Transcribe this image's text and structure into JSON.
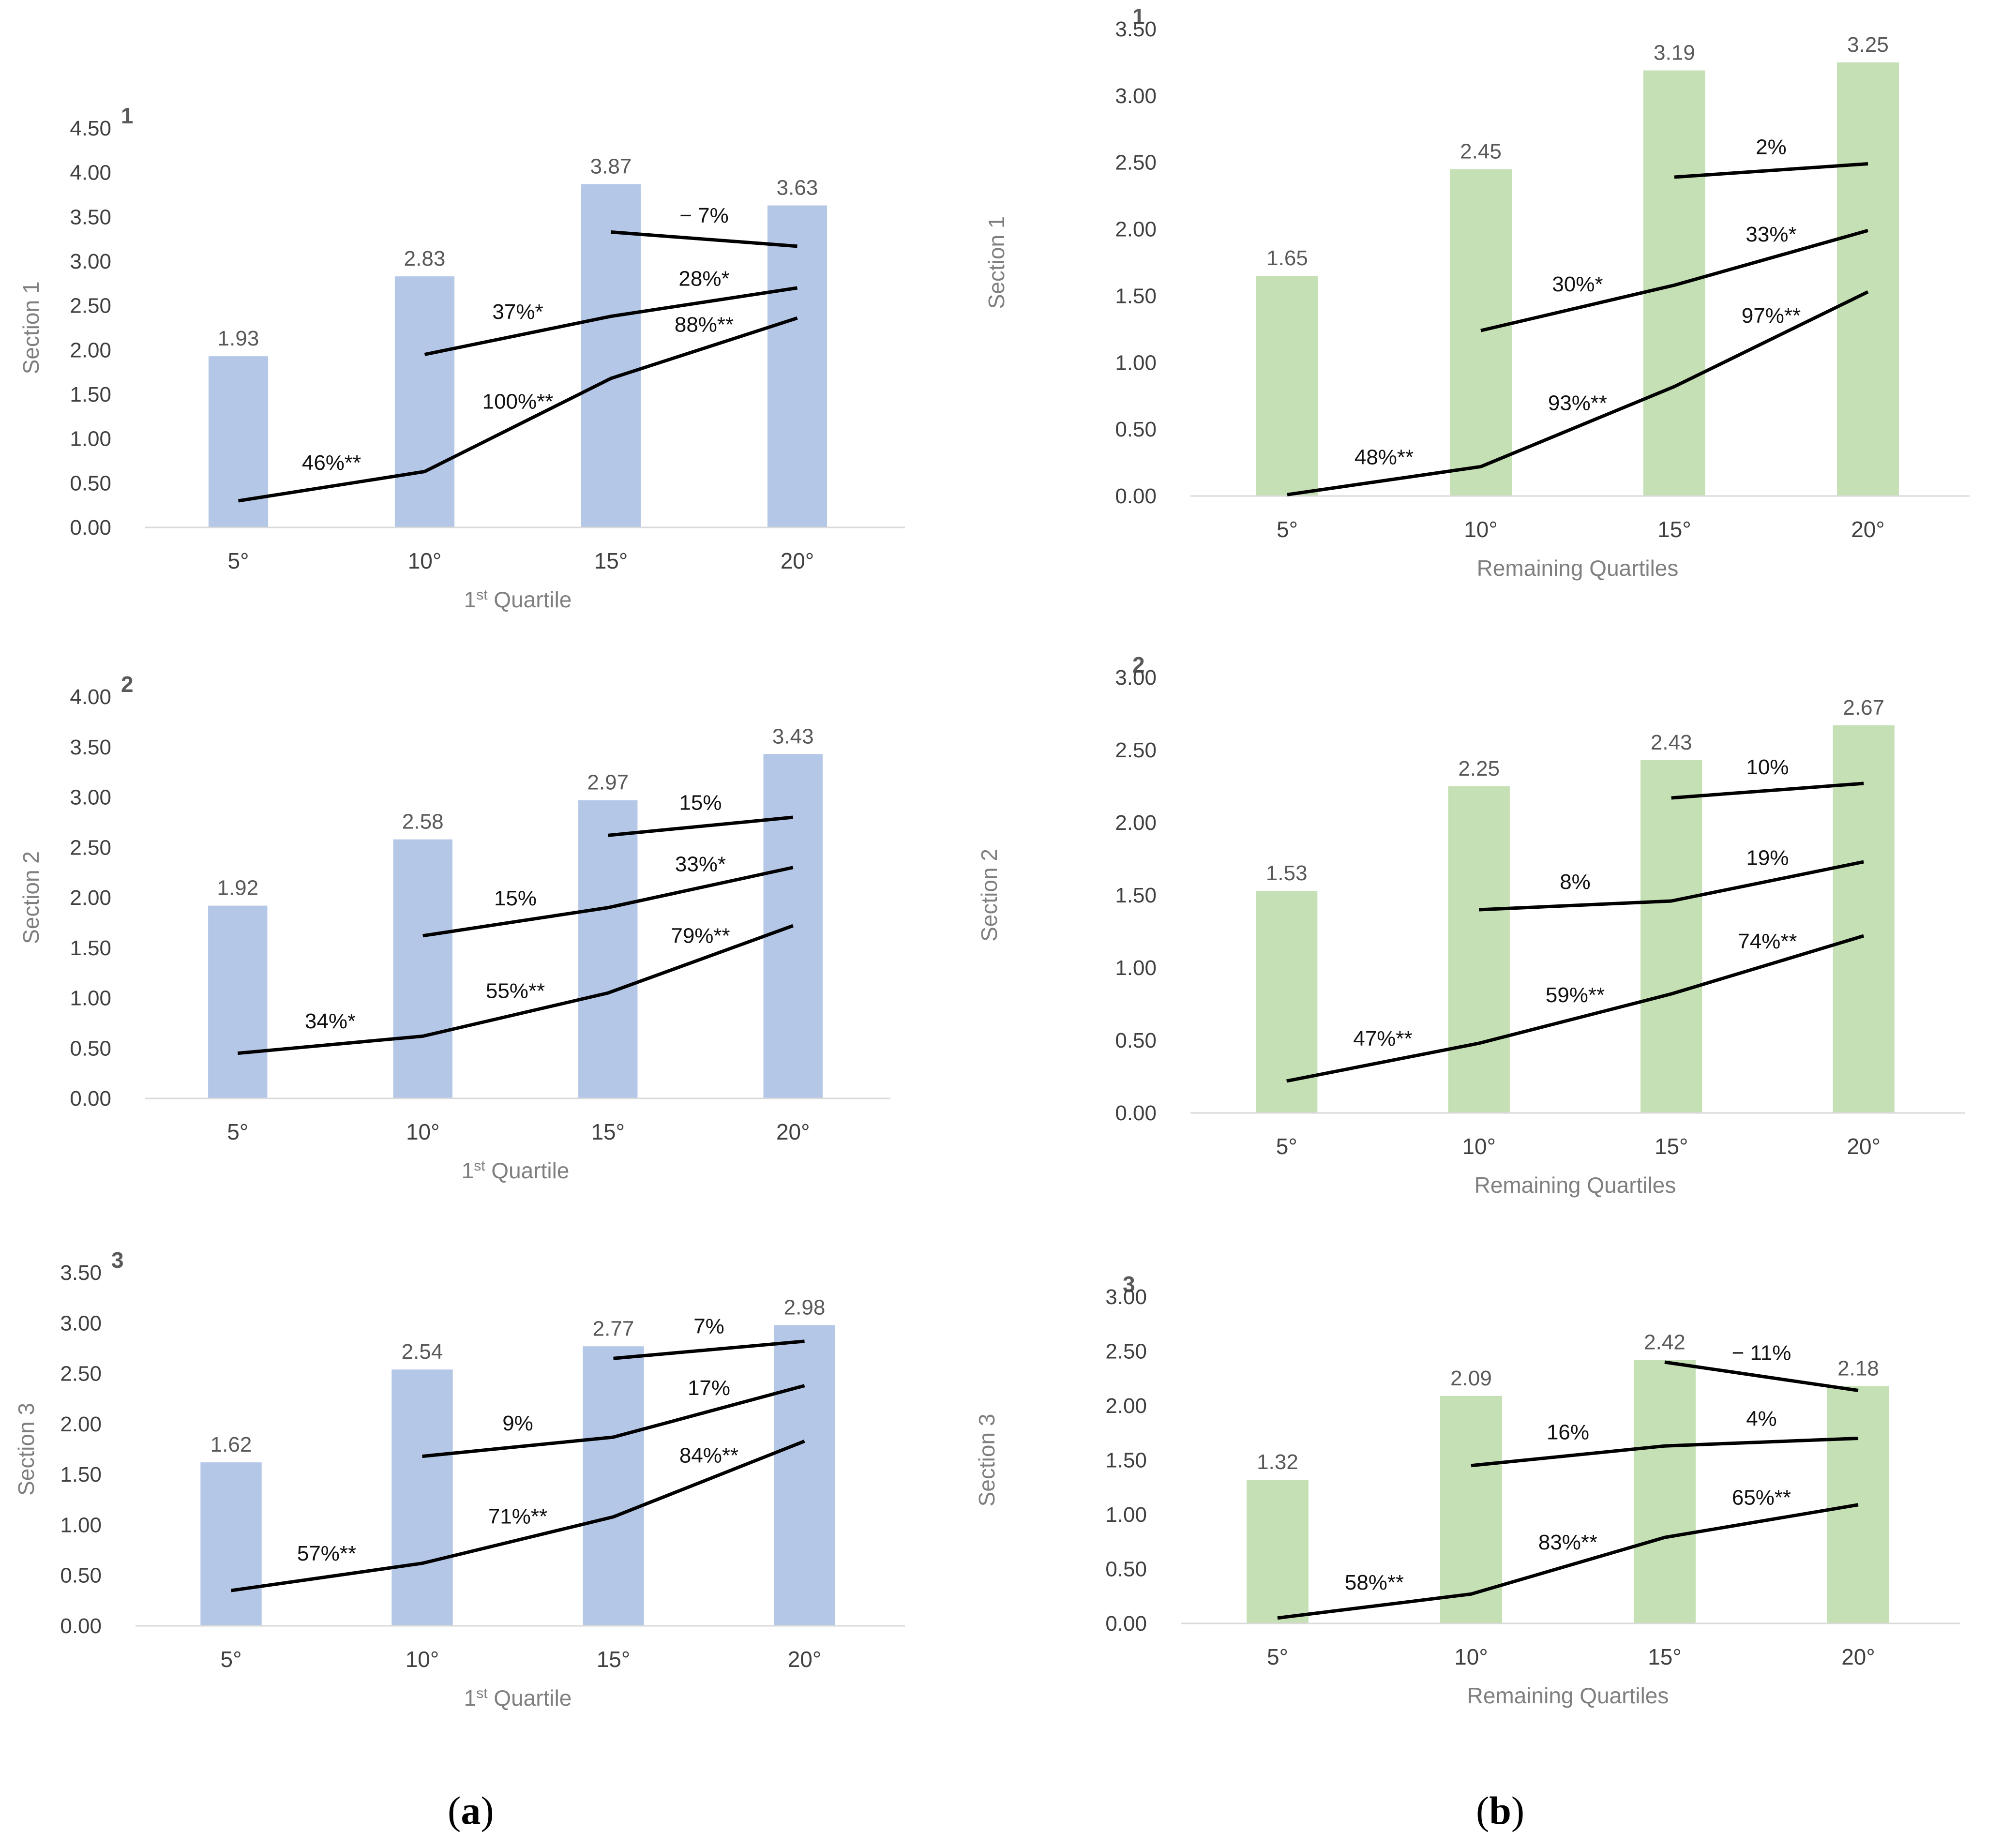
{
  "captions": {
    "a": "a",
    "b": "b"
  },
  "colors": {
    "left_bars": "#b4c7e7",
    "right_bars": "#c5e0b4",
    "lines": "#000000"
  },
  "chart_data": [
    {
      "id": "a1",
      "type": "bar",
      "panel": "1",
      "ylabel": "Section 1",
      "xlabel": "1st Quartile",
      "xlabel_main": "1",
      "xlabel_sup": "st",
      "xlabel_rest": " Quartile",
      "categories": [
        "5°",
        "10°",
        "15°",
        "20°"
      ],
      "values": [
        1.93,
        2.83,
        3.87,
        3.63
      ],
      "ylim": [
        0,
        4.5
      ],
      "yticks": [
        "0.00",
        "0.50",
        "1.00",
        "1.50",
        "2.00",
        "2.50",
        "3.00",
        "3.50",
        "4.00",
        "4.50"
      ],
      "ytick_values": [
        0,
        0.5,
        1,
        1.5,
        2,
        2.5,
        3,
        3.5,
        4,
        4.5
      ],
      "bar_color": "#b4c7e7",
      "lines": [
        {
          "points": [
            [
              0,
              0.3
            ],
            [
              1,
              0.63
            ],
            [
              2,
              1.68
            ],
            [
              3,
              2.36
            ]
          ],
          "labels": [
            "46%**",
            "100%**",
            "88%**"
          ]
        },
        {
          "points": [
            [
              1,
              1.95
            ],
            [
              2,
              2.38
            ],
            [
              3,
              2.7
            ]
          ],
          "labels": [
            "37%*",
            "28%*"
          ]
        },
        {
          "points": [
            [
              2,
              3.33
            ],
            [
              3,
              3.17
            ]
          ],
          "labels": [
            "− 7%"
          ]
        }
      ]
    },
    {
      "id": "a2",
      "type": "bar",
      "panel": "2",
      "ylabel": "Section 2",
      "xlabel": "1st Quartile",
      "xlabel_main": "1",
      "xlabel_sup": "st",
      "xlabel_rest": " Quartile",
      "categories": [
        "5°",
        "10°",
        "15°",
        "20°"
      ],
      "values": [
        1.92,
        2.58,
        2.97,
        3.43
      ],
      "ylim": [
        0,
        4.0
      ],
      "yticks": [
        "0.00",
        "0.50",
        "1.00",
        "1.50",
        "2.00",
        "2.50",
        "3.00",
        "3.50",
        "4.00"
      ],
      "ytick_values": [
        0,
        0.5,
        1,
        1.5,
        2,
        2.5,
        3,
        3.5,
        4
      ],
      "bar_color": "#b4c7e7",
      "lines": [
        {
          "points": [
            [
              0,
              0.45
            ],
            [
              1,
              0.62
            ],
            [
              2,
              1.05
            ],
            [
              3,
              1.72
            ]
          ],
          "labels": [
            "34%*",
            "55%**",
            "79%**"
          ]
        },
        {
          "points": [
            [
              1,
              1.62
            ],
            [
              2,
              1.9
            ],
            [
              3,
              2.3
            ]
          ],
          "labels": [
            "15%",
            "33%*"
          ]
        },
        {
          "points": [
            [
              2,
              2.62
            ],
            [
              3,
              2.8
            ]
          ],
          "labels": [
            "15%"
          ]
        }
      ]
    },
    {
      "id": "a3",
      "type": "bar",
      "panel": "3",
      "ylabel": "Section 3",
      "xlabel": "1st Quartile",
      "xlabel_main": "1",
      "xlabel_sup": "st",
      "xlabel_rest": " Quartile",
      "categories": [
        "5°",
        "10°",
        "15°",
        "20°"
      ],
      "values": [
        1.62,
        2.54,
        2.77,
        2.98
      ],
      "ylim": [
        0,
        3.5
      ],
      "yticks": [
        "0.00",
        "0.50",
        "1.00",
        "1.50",
        "2.00",
        "2.50",
        "3.00",
        "3.50"
      ],
      "ytick_values": [
        0,
        0.5,
        1,
        1.5,
        2,
        2.5,
        3,
        3.5
      ],
      "bar_color": "#b4c7e7",
      "lines": [
        {
          "points": [
            [
              0,
              0.35
            ],
            [
              1,
              0.62
            ],
            [
              2,
              1.08
            ],
            [
              3,
              1.83
            ]
          ],
          "labels": [
            "57%**",
            "71%**",
            "84%**"
          ]
        },
        {
          "points": [
            [
              1,
              1.68
            ],
            [
              2,
              1.87
            ],
            [
              3,
              2.38
            ]
          ],
          "labels": [
            "9%",
            "17%"
          ]
        },
        {
          "points": [
            [
              2,
              2.65
            ],
            [
              3,
              2.82
            ]
          ],
          "labels": [
            "7%"
          ]
        }
      ]
    },
    {
      "id": "b1",
      "type": "bar",
      "panel": "1",
      "ylabel": "Section 1",
      "xlabel": "Remaining Quartiles",
      "categories": [
        "5°",
        "10°",
        "15°",
        "20°"
      ],
      "values": [
        1.65,
        2.45,
        3.19,
        3.25
      ],
      "ylim": [
        0,
        3.5
      ],
      "yticks": [
        "0.00",
        "0.50",
        "1.00",
        "1.50",
        "2.00",
        "2.50",
        "3.00",
        "3.50"
      ],
      "ytick_values": [
        0,
        0.5,
        1,
        1.5,
        2,
        2.5,
        3,
        3.5
      ],
      "bar_color": "#c5e0b4",
      "lines": [
        {
          "points": [
            [
              0,
              0.01
            ],
            [
              1,
              0.22
            ],
            [
              2,
              0.82
            ],
            [
              3,
              1.53
            ]
          ],
          "labels": [
            "48%**",
            "93%**",
            "97%**"
          ]
        },
        {
          "points": [
            [
              1,
              1.24
            ],
            [
              2,
              1.58
            ],
            [
              3,
              1.99
            ]
          ],
          "labels": [
            "30%*",
            "33%*"
          ]
        },
        {
          "points": [
            [
              2,
              2.39
            ],
            [
              3,
              2.49
            ]
          ],
          "labels": [
            "2%"
          ]
        }
      ]
    },
    {
      "id": "b2",
      "type": "bar",
      "panel": "2",
      "ylabel": "Section 2",
      "xlabel": "Remaining Quartiles",
      "categories": [
        "5°",
        "10°",
        "15°",
        "20°"
      ],
      "values": [
        1.53,
        2.25,
        2.43,
        2.67
      ],
      "ylim": [
        0,
        3.0
      ],
      "yticks": [
        "0.00",
        "0.50",
        "1.00",
        "1.50",
        "2.00",
        "2.50",
        "3.00"
      ],
      "ytick_values": [
        0,
        0.5,
        1,
        1.5,
        2,
        2.5,
        3
      ],
      "bar_color": "#c5e0b4",
      "lines": [
        {
          "points": [
            [
              0,
              0.22
            ],
            [
              1,
              0.48
            ],
            [
              2,
              0.82
            ],
            [
              3,
              1.22
            ]
          ],
          "labels": [
            "47%**",
            "59%**",
            "74%**"
          ]
        },
        {
          "points": [
            [
              1,
              1.4
            ],
            [
              2,
              1.46
            ],
            [
              3,
              1.73
            ]
          ],
          "labels": [
            "8%",
            "19%"
          ]
        },
        {
          "points": [
            [
              2,
              2.17
            ],
            [
              3,
              2.27
            ]
          ],
          "labels": [
            "10%"
          ]
        }
      ]
    },
    {
      "id": "b3",
      "type": "bar",
      "panel": "3",
      "ylabel": "Section 3",
      "xlabel": "Remaining Quartiles",
      "categories": [
        "5°",
        "10°",
        "15°",
        "20°"
      ],
      "values": [
        1.32,
        2.09,
        2.42,
        2.18
      ],
      "ylim": [
        0,
        3.0
      ],
      "yticks": [
        "0.00",
        "0.50",
        "1.00",
        "1.50",
        "2.00",
        "2.50",
        "3.00"
      ],
      "ytick_values": [
        0,
        0.5,
        1,
        1.5,
        2,
        2.5,
        3
      ],
      "bar_color": "#c5e0b4",
      "lines": [
        {
          "points": [
            [
              0,
              0.05
            ],
            [
              1,
              0.27
            ],
            [
              2,
              0.79
            ],
            [
              3,
              1.09
            ]
          ],
          "labels": [
            "58%**",
            "83%**",
            "65%**"
          ]
        },
        {
          "points": [
            [
              1,
              1.45
            ],
            [
              2,
              1.63
            ],
            [
              3,
              1.7
            ]
          ],
          "labels": [
            "16%",
            "4%"
          ]
        },
        {
          "points": [
            [
              2,
              2.4
            ],
            [
              3,
              2.14
            ]
          ],
          "labels": [
            "− 11%"
          ]
        }
      ]
    }
  ]
}
